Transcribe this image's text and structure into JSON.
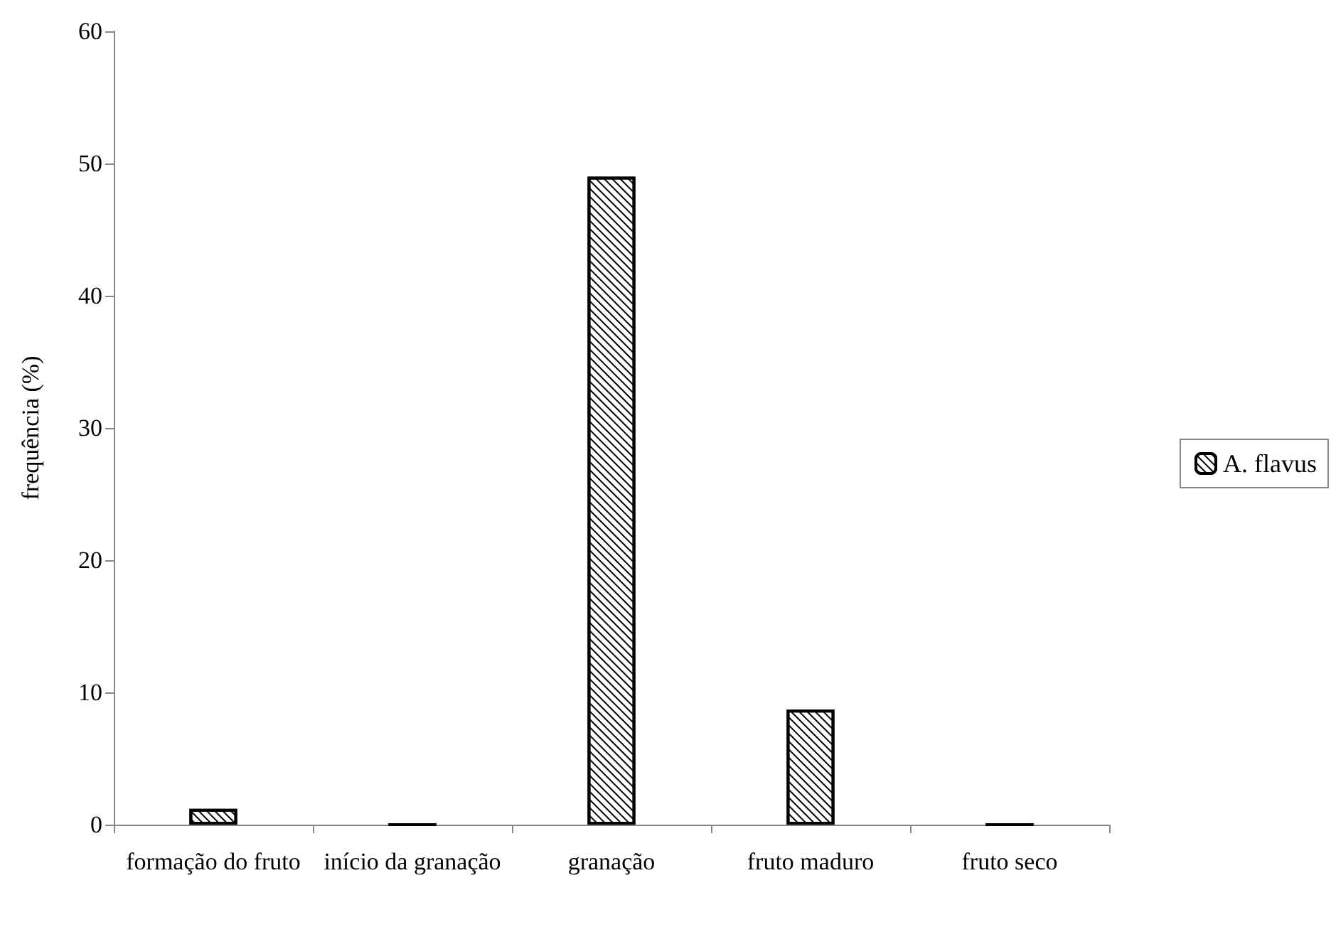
{
  "chart_data": {
    "type": "bar",
    "ylabel": "frequência (%)",
    "categories": [
      "formação do fruto",
      "início da granação",
      "granação",
      "fruto maduro",
      "fruto seco"
    ],
    "series": [
      {
        "name": "A. flavus",
        "color": "#000000",
        "values": [
          1.2,
          0,
          49,
          8.7,
          0
        ]
      }
    ],
    "ylim": [
      0,
      60
    ],
    "yticks": [
      0,
      10,
      20,
      30,
      40,
      50,
      60
    ],
    "grid": false,
    "legend": "right"
  }
}
